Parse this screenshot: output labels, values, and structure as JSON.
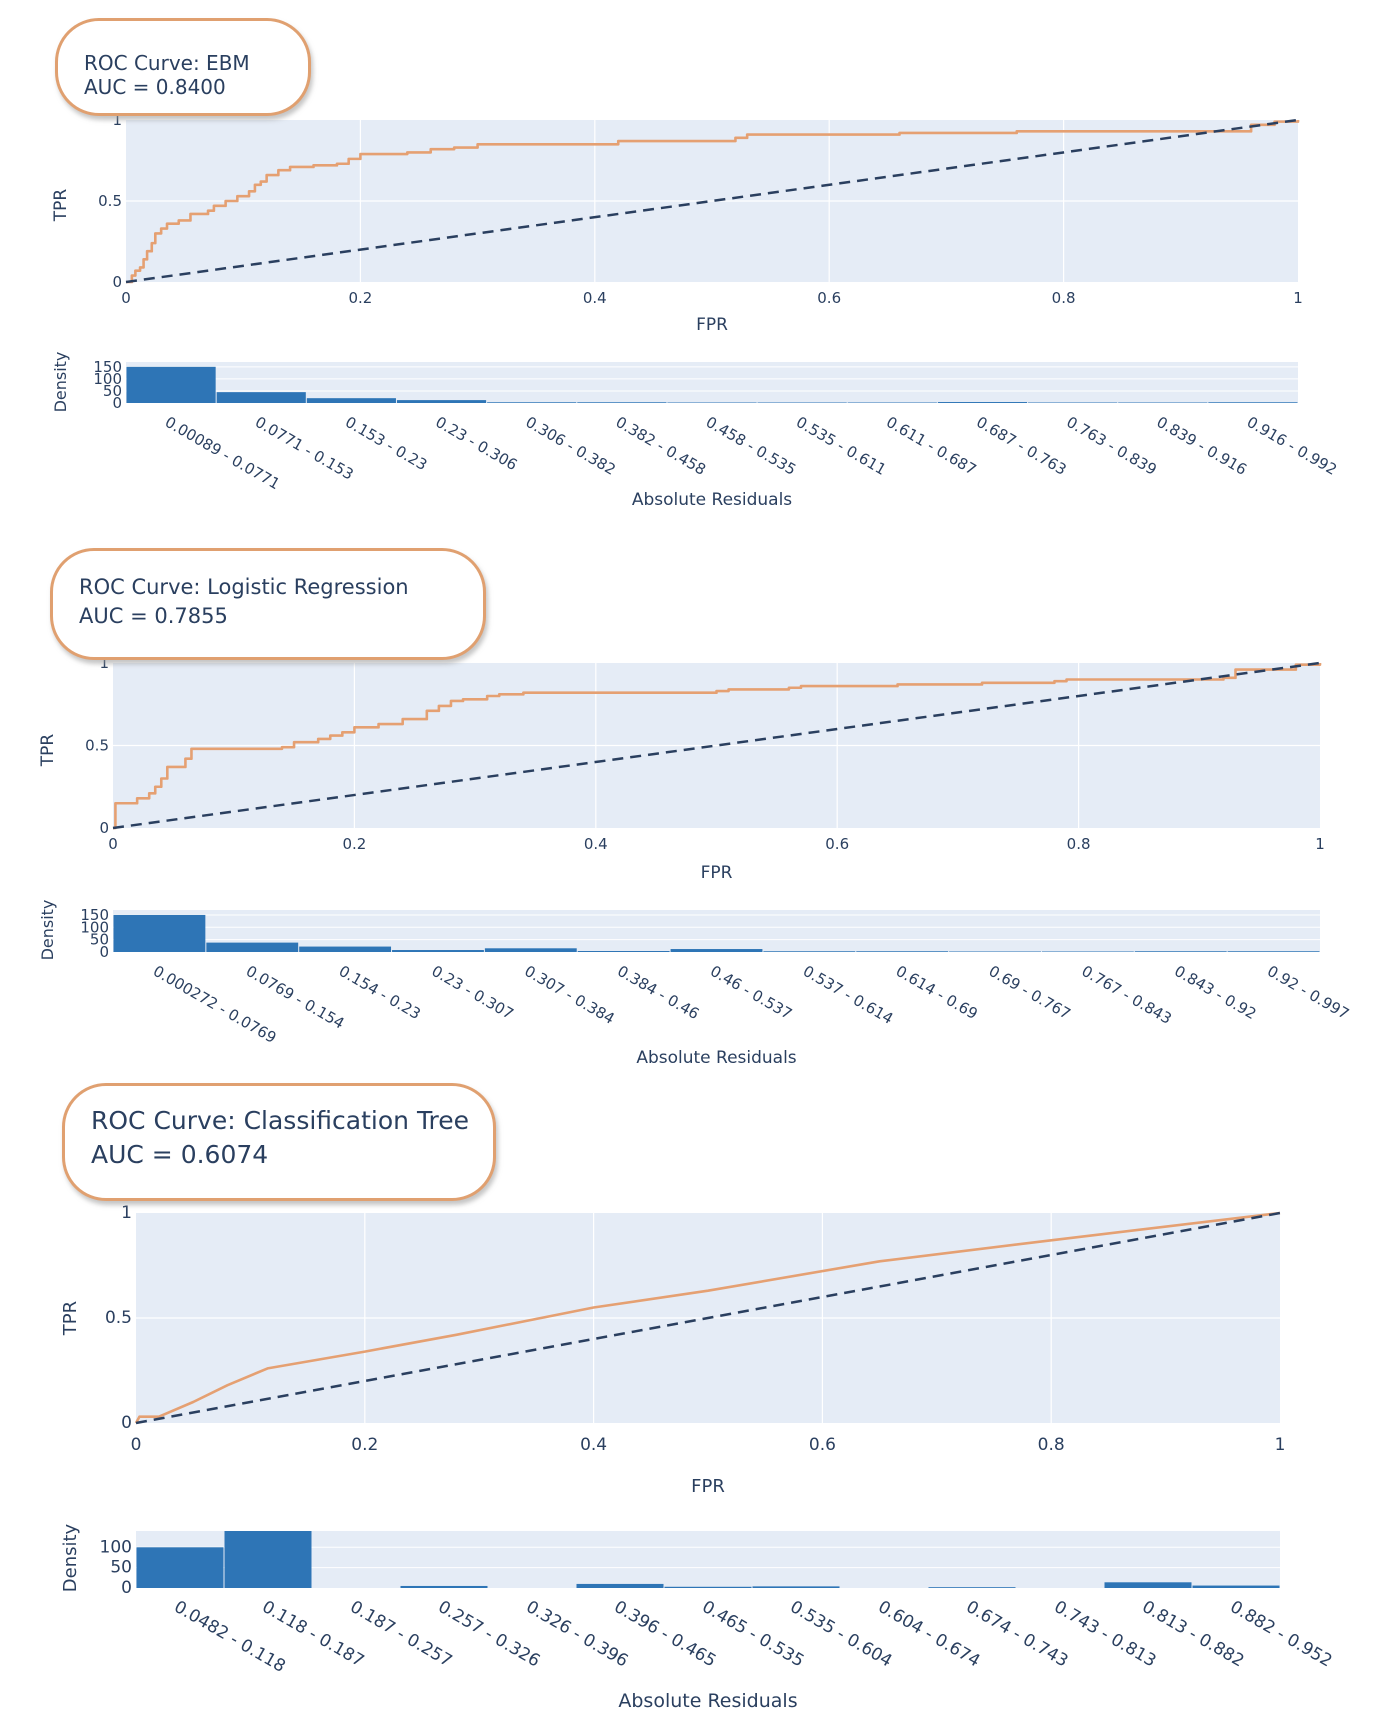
{
  "colors": {
    "plot_bg": "#e5ecf6",
    "grid": "#ffffff",
    "roc_line": "#e5a072",
    "diagonal": "#2a3f5f",
    "bar": "#2e75b6",
    "title_border": "#e0a070",
    "text": "#2a3f5f"
  },
  "chart_data": [
    {
      "type": "line",
      "title": "ROC Curve: EBM",
      "auc_text": "AUC = 0.8400",
      "xlabel": "FPR",
      "ylabel": "TPR",
      "xlim": [
        0,
        1
      ],
      "ylim": [
        0,
        1
      ],
      "x_ticks": [
        "0",
        "0.2",
        "0.4",
        "0.6",
        "0.8",
        "1"
      ],
      "y_ticks": [
        "0",
        "0.5",
        "1"
      ],
      "grid": true,
      "series": [
        {
          "role": "roc",
          "style": "solid-step",
          "x": [
            0,
            0.005,
            0.008,
            0.012,
            0.015,
            0.018,
            0.022,
            0.025,
            0.03,
            0.035,
            0.045,
            0.055,
            0.07,
            0.075,
            0.085,
            0.095,
            0.105,
            0.11,
            0.115,
            0.12,
            0.13,
            0.14,
            0.16,
            0.18,
            0.19,
            0.2,
            0.24,
            0.26,
            0.28,
            0.3,
            0.42,
            0.52,
            0.53,
            0.66,
            0.73,
            0.76,
            0.96,
            0.98,
            1
          ],
          "y": [
            0,
            0.04,
            0.07,
            0.09,
            0.14,
            0.19,
            0.24,
            0.3,
            0.33,
            0.36,
            0.38,
            0.42,
            0.44,
            0.47,
            0.5,
            0.53,
            0.56,
            0.6,
            0.62,
            0.66,
            0.69,
            0.71,
            0.72,
            0.73,
            0.76,
            0.79,
            0.8,
            0.82,
            0.83,
            0.85,
            0.87,
            0.89,
            0.91,
            0.92,
            0.92,
            0.93,
            0.97,
            0.99,
            1
          ]
        },
        {
          "role": "diagonal",
          "style": "dashed",
          "x": [
            0,
            1
          ],
          "y": [
            0,
            1
          ]
        }
      ],
      "histogram": {
        "type": "bar",
        "xlabel": "Absolute Residuals",
        "ylabel": "Density",
        "y_ticks": [
          "0",
          "50",
          "100",
          "150"
        ],
        "ylim": [
          0,
          170
        ],
        "categories": [
          "0.00089 - 0.0771",
          "0.0771 - 0.153",
          "0.153 - 0.23",
          "0.23 - 0.306",
          "0.306 - 0.382",
          "0.382 - 0.458",
          "0.458 - 0.535",
          "0.535 - 0.611",
          "0.611 - 0.687",
          "0.687 - 0.763",
          "0.763 - 0.839",
          "0.839 - 0.916",
          "0.916 - 0.992"
        ],
        "values": [
          150,
          45,
          20,
          12,
          3,
          3,
          2,
          2,
          2,
          4,
          2,
          2,
          3
        ]
      }
    },
    {
      "type": "line",
      "title": "ROC Curve: Logistic Regression",
      "auc_text": "AUC = 0.7855",
      "xlabel": "FPR",
      "ylabel": "TPR",
      "xlim": [
        0,
        1
      ],
      "ylim": [
        0,
        1
      ],
      "x_ticks": [
        "0",
        "0.2",
        "0.4",
        "0.6",
        "0.8",
        "1"
      ],
      "y_ticks": [
        "0",
        "0.5",
        "1"
      ],
      "grid": true,
      "series": [
        {
          "role": "roc",
          "style": "solid-step",
          "x": [
            0,
            0.002,
            0.02,
            0.03,
            0.035,
            0.04,
            0.045,
            0.06,
            0.065,
            0.14,
            0.15,
            0.17,
            0.18,
            0.19,
            0.2,
            0.22,
            0.24,
            0.26,
            0.27,
            0.28,
            0.29,
            0.31,
            0.32,
            0.34,
            0.5,
            0.51,
            0.56,
            0.57,
            0.65,
            0.72,
            0.78,
            0.79,
            0.92,
            0.93,
            0.98,
            1
          ],
          "y": [
            0,
            0.15,
            0.18,
            0.21,
            0.25,
            0.3,
            0.37,
            0.42,
            0.48,
            0.49,
            0.52,
            0.54,
            0.56,
            0.58,
            0.61,
            0.63,
            0.66,
            0.71,
            0.74,
            0.77,
            0.78,
            0.8,
            0.81,
            0.82,
            0.83,
            0.84,
            0.85,
            0.86,
            0.87,
            0.88,
            0.89,
            0.9,
            0.91,
            0.96,
            0.99,
            1
          ]
        },
        {
          "role": "diagonal",
          "style": "dashed",
          "x": [
            0,
            1
          ],
          "y": [
            0,
            1
          ]
        }
      ],
      "histogram": {
        "type": "bar",
        "xlabel": "Absolute Residuals",
        "ylabel": "Density",
        "y_ticks": [
          "0",
          "50",
          "100",
          "150"
        ],
        "ylim": [
          0,
          170
        ],
        "categories": [
          "0.000272 - 0.0769",
          "0.0769 - 0.154",
          "0.154 - 0.23",
          "0.23 - 0.307",
          "0.307 - 0.384",
          "0.384 - 0.46",
          "0.46 - 0.537",
          "0.537 - 0.614",
          "0.614 - 0.69",
          "0.69 - 0.767",
          "0.767 - 0.843",
          "0.843 - 0.92",
          "0.92 - 0.997"
        ],
        "values": [
          150,
          38,
          22,
          8,
          15,
          4,
          12,
          3,
          3,
          2,
          2,
          3,
          3
        ]
      }
    },
    {
      "type": "line",
      "title": "ROC Curve: Classification Tree",
      "auc_text": "AUC = 0.6074",
      "xlabel": "FPR",
      "ylabel": "TPR",
      "xlim": [
        0,
        1
      ],
      "ylim": [
        0,
        1
      ],
      "x_ticks": [
        "0",
        "0.2",
        "0.4",
        "0.6",
        "0.8",
        "1"
      ],
      "y_ticks": [
        "0",
        "0.5",
        "1"
      ],
      "grid": true,
      "series": [
        {
          "role": "roc",
          "style": "solid",
          "x": [
            0,
            0.003,
            0.02,
            0.05,
            0.08,
            0.115,
            0.2,
            0.28,
            0.4,
            0.5,
            0.65,
            0.8,
            1
          ],
          "y": [
            0,
            0.03,
            0.03,
            0.1,
            0.18,
            0.26,
            0.34,
            0.42,
            0.55,
            0.63,
            0.77,
            0.87,
            1
          ]
        },
        {
          "role": "diagonal",
          "style": "dashed",
          "x": [
            0,
            1
          ],
          "y": [
            0,
            1
          ]
        }
      ],
      "histogram": {
        "type": "bar",
        "xlabel": "Absolute Residuals",
        "ylabel": "Density",
        "y_ticks": [
          "0",
          "50",
          "100"
        ],
        "ylim": [
          0,
          140
        ],
        "categories": [
          "0.0482 - 0.118",
          "0.118 - 0.187",
          "0.187 - 0.257",
          "0.257 - 0.326",
          "0.326 - 0.396",
          "0.396 - 0.465",
          "0.465 - 0.535",
          "0.535 - 0.604",
          "0.604 - 0.674",
          "0.674 - 0.743",
          "0.743 - 0.813",
          "0.813 - 0.882",
          "0.882 - 0.952"
        ],
        "values": [
          100,
          140,
          0,
          5,
          0,
          10,
          3,
          4,
          0,
          2,
          0,
          14,
          6
        ]
      }
    }
  ]
}
